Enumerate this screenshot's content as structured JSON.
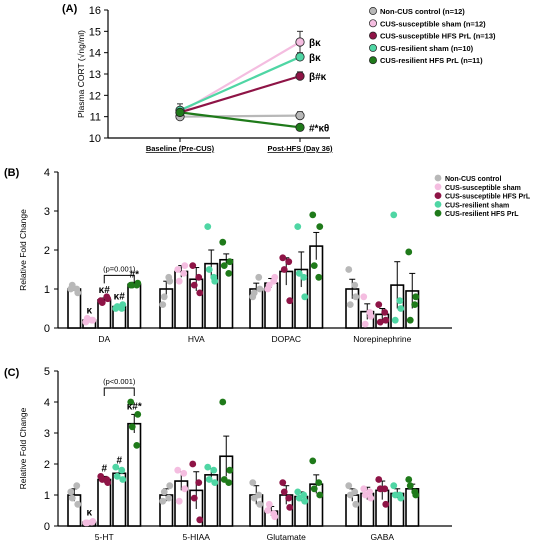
{
  "colors": {
    "non_cus_control": "#b8b8b8",
    "cus_susceptible_sham": "#f4bde0",
    "cus_susceptible_hfs": "#8e1446",
    "cus_resilient_sham": "#4fd6a4",
    "cus_resilient_hfs": "#1f7a1a",
    "axis": "#000000"
  },
  "chart_data": [
    {
      "panel": "(A)",
      "type": "line",
      "title": "",
      "xlabel": "",
      "ylabel": "Plasma CORT (√ng/ml)",
      "ylim": [
        10,
        16
      ],
      "yticks": [
        "10",
        "11",
        "12",
        "13",
        "14",
        "15",
        "16"
      ],
      "categories": [
        "Baseline (Pre-CUS)",
        "Post-HFS (Day 36)"
      ],
      "legend_position": "right",
      "series": [
        {
          "name": "Non-CUS control (n=12)",
          "color_key": "non_cus_control",
          "values": [
            11.0,
            11.05
          ],
          "errors": [
            0.12,
            0.18
          ],
          "annotation": ""
        },
        {
          "name": "CUS-susceptible sham (n=12)",
          "color_key": "cus_susceptible_sham",
          "values": [
            11.2,
            14.5
          ],
          "errors": [
            0.15,
            0.5
          ],
          "annotation": "βκ"
        },
        {
          "name": "CUS-susceptible HFS PrL (n=13)",
          "color_key": "cus_susceptible_hfs",
          "values": [
            11.2,
            12.9
          ],
          "errors": [
            0.15,
            0.2
          ],
          "annotation": "β#κ"
        },
        {
          "name": "CUS-resilient sham (n=10)",
          "color_key": "cus_resilient_sham",
          "values": [
            11.3,
            13.8
          ],
          "errors": [
            0.3,
            0.2
          ],
          "annotation": "βκ"
        },
        {
          "name": "CUS-resilient HFS PrL (n=11)",
          "color_key": "cus_resilient_hfs",
          "values": [
            11.2,
            10.5
          ],
          "errors": [
            0.15,
            0.05
          ],
          "annotation": "#*κθ"
        }
      ]
    },
    {
      "panel": "(B)",
      "type": "bar",
      "title": "",
      "xlabel": "",
      "ylabel": "Relative Fold Change",
      "ylim": [
        0,
        4
      ],
      "yticks": [
        "0",
        "1",
        "2",
        "3",
        "4"
      ],
      "categories": [
        "DA",
        "HVA",
        "DOPAC",
        "Norepinephrine"
      ],
      "legend_position": "top-right",
      "bracket": {
        "text": "(p=0.001)",
        "from_category": 0,
        "from_series": 2,
        "to_series": 4,
        "y": 1.35
      },
      "series": [
        {
          "name": "Non-CUS control",
          "color_key": "non_cus_control",
          "values": [
            1.0,
            1.0,
            1.0,
            1.0
          ],
          "errors": [
            0.05,
            0.2,
            0.15,
            0.25
          ],
          "annotations": [
            "",
            "",
            "",
            ""
          ],
          "points": [
            [
              1.0,
              0.9,
              1.1,
              1.0
            ],
            [
              0.6,
              1.2,
              0.8,
              1.3
            ],
            [
              0.8,
              1.0,
              0.9,
              1.3
            ],
            [
              1.5,
              0.8,
              0.6,
              1.1
            ]
          ]
        },
        {
          "name": "CUS-susceptible sham",
          "color_key": "cus_susceptible_sham",
          "values": [
            0.2,
            1.45,
            1.15,
            0.42
          ],
          "errors": [
            0.05,
            0.15,
            0.12,
            0.2
          ],
          "annotations": [
            "κ",
            "",
            "",
            ""
          ],
          "points": [
            [
              0.15,
              0.2,
              0.25,
              0.2
            ],
            [
              1.5,
              1.6,
              1.2,
              1.4
            ],
            [
              1.0,
              1.3,
              1.1,
              1.2
            ],
            [
              0.8,
              0.3,
              0.1,
              0.4
            ]
          ]
        },
        {
          "name": "CUS-susceptible HFS PrL",
          "color_key": "cus_susceptible_hfs",
          "values": [
            0.72,
            1.25,
            1.45,
            0.35
          ],
          "errors": [
            0.05,
            0.3,
            0.35,
            0.15
          ],
          "annotations": [
            "κ#",
            "",
            "",
            ""
          ],
          "points": [
            [
              0.7,
              0.75,
              0.65,
              0.8
            ],
            [
              1.6,
              0.9,
              1.1,
              1.3
            ],
            [
              1.8,
              0.7,
              1.5,
              1.7
            ],
            [
              0.6,
              0.2,
              0.15,
              0.4
            ]
          ]
        },
        {
          "name": "CUS-resilient sham",
          "color_key": "cus_resilient_sham",
          "values": [
            0.55,
            1.65,
            1.5,
            1.1
          ],
          "errors": [
            0.05,
            0.35,
            0.45,
            0.6
          ],
          "annotations": [
            "κ#",
            "",
            "",
            ""
          ],
          "points": [
            [
              0.5,
              0.6,
              0.55,
              0.5
            ],
            [
              2.6,
              1.2,
              1.5,
              1.3
            ],
            [
              2.6,
              0.8,
              1.4,
              1.3
            ],
            [
              2.9,
              0.5,
              0.2,
              0.7
            ]
          ]
        },
        {
          "name": "CUS-resilient HFS PrL",
          "color_key": "cus_resilient_hfs",
          "values": [
            1.12,
            1.75,
            2.1,
            0.95
          ],
          "errors": [
            0.05,
            0.15,
            0.35,
            0.45
          ],
          "annotations": [
            "#*",
            "",
            "",
            ""
          ],
          "points": [
            [
              1.1,
              1.15,
              1.1,
              1.1
            ],
            [
              2.2,
              1.7,
              1.6,
              1.4
            ],
            [
              2.9,
              2.6,
              1.6,
              1.3
            ],
            [
              1.95,
              0.8,
              0.2,
              0.6
            ]
          ]
        }
      ]
    },
    {
      "panel": "(C)",
      "type": "bar",
      "title": "",
      "xlabel": "",
      "ylabel": "Relative Fold Change",
      "ylim": [
        0,
        5
      ],
      "yticks": [
        "0",
        "1",
        "2",
        "3",
        "4",
        "5"
      ],
      "categories": [
        "5-HT",
        "5-HIAA",
        "Glutamate",
        "GABA"
      ],
      "bracket": {
        "text": "(p<0.001)",
        "from_category": 0,
        "from_series": 2,
        "to_series": 4,
        "y": 4.45
      },
      "series": [
        {
          "name": "Non-CUS control",
          "color_key": "non_cus_control",
          "values": [
            1.0,
            1.0,
            1.0,
            1.0
          ],
          "errors": [
            0.2,
            0.2,
            0.3,
            0.2
          ],
          "annotations": [
            "",
            "",
            "",
            ""
          ],
          "points": [
            [
              1.1,
              0.7,
              0.9,
              1.3
            ],
            [
              0.8,
              1.3,
              1.1,
              0.9
            ],
            [
              1.4,
              0.7,
              0.9,
              1.0
            ],
            [
              1.3,
              0.7,
              1.0,
              1.1
            ]
          ]
        },
        {
          "name": "CUS-susceptible sham",
          "color_key": "cus_susceptible_sham",
          "values": [
            0.12,
            1.45,
            0.48,
            1.05
          ],
          "errors": [
            0.05,
            0.3,
            0.15,
            0.2
          ],
          "annotations": [
            "κ",
            "",
            "",
            ""
          ],
          "points": [
            [
              0.1,
              0.15,
              0.1,
              0.12
            ],
            [
              1.8,
              1.2,
              0.8,
              1.7
            ],
            [
              0.5,
              0.3,
              0.7,
              0.4
            ],
            [
              1.2,
              0.9,
              1.0,
              1.1
            ]
          ]
        },
        {
          "name": "CUS-susceptible HFS PrL",
          "color_key": "cus_susceptible_hfs",
          "values": [
            1.5,
            1.15,
            1.0,
            1.15
          ],
          "errors": [
            0.1,
            0.6,
            0.3,
            0.3
          ],
          "annotations": [
            "#",
            "",
            "",
            ""
          ],
          "points": [
            [
              1.6,
              1.4,
              1.5,
              1.5
            ],
            [
              2.0,
              0.2,
              0.9,
              1.4
            ],
            [
              1.4,
              0.6,
              1.1,
              0.9
            ],
            [
              1.5,
              0.7,
              1.2,
              1.2
            ]
          ]
        },
        {
          "name": "CUS-resilient sham",
          "color_key": "cus_resilient_sham",
          "values": [
            1.7,
            1.65,
            0.95,
            1.05
          ],
          "errors": [
            0.15,
            0.2,
            0.15,
            0.15
          ],
          "annotations": [
            "#",
            "",
            "",
            ""
          ],
          "points": [
            [
              1.9,
              1.5,
              1.6,
              1.8
            ],
            [
              1.9,
              1.4,
              1.5,
              1.8
            ],
            [
              1.1,
              0.8,
              0.9,
              1.0
            ],
            [
              1.3,
              0.9,
              1.0,
              1.0
            ]
          ]
        },
        {
          "name": "CUS-resilient HFS PrL",
          "color_key": "cus_resilient_hfs",
          "values": [
            3.3,
            2.25,
            1.35,
            1.2
          ],
          "errors": [
            0.3,
            0.65,
            0.3,
            0.15
          ],
          "annotations": [
            "κ#*",
            "",
            "",
            ""
          ],
          "points": [
            [
              4.0,
              3.6,
              3.2,
              2.6
            ],
            [
              4.0,
              1.8,
              1.5,
              1.4
            ],
            [
              2.1,
              1.0,
              1.2,
              1.4
            ],
            [
              1.5,
              1.0,
              1.3,
              1.1
            ]
          ]
        }
      ]
    }
  ]
}
